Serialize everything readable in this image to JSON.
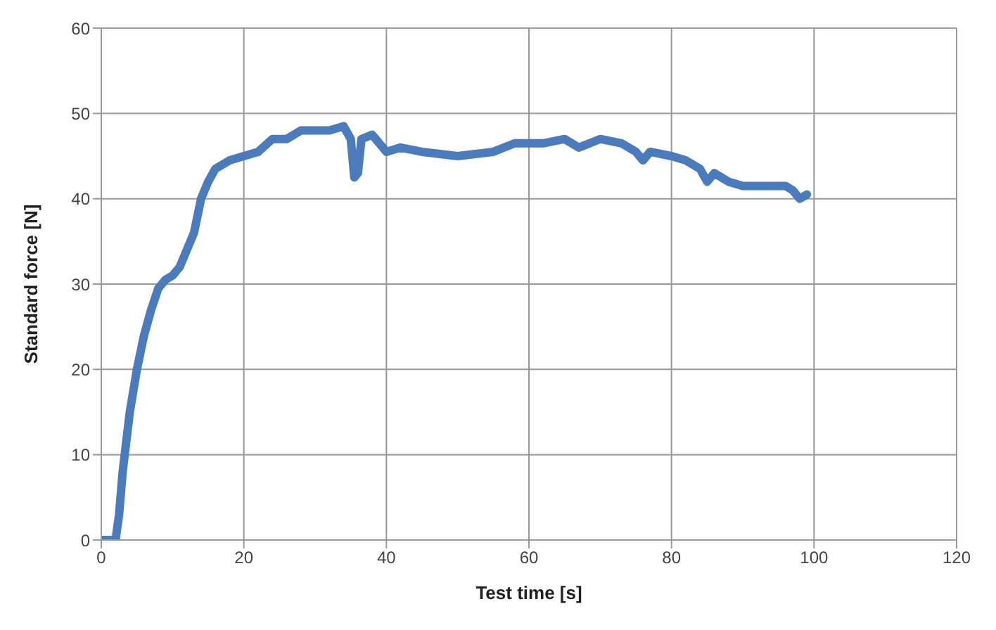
{
  "chart_data": {
    "type": "line",
    "xlabel": "Test time [s]",
    "ylabel": "Standard force [N]",
    "xlim": [
      0,
      120
    ],
    "xticks": [
      0,
      20,
      40,
      60,
      80,
      100,
      120
    ],
    "ylim": [
      0,
      60
    ],
    "yticks": [
      0,
      10,
      20,
      30,
      40,
      50,
      60
    ],
    "grid": true,
    "marker": "none",
    "line_style": "solid",
    "series": [
      {
        "color": "#4a7bbd",
        "x": [
          0,
          2,
          2.5,
          3,
          4,
          5,
          6,
          7,
          8,
          9,
          10,
          11,
          12,
          13,
          14,
          15,
          16,
          18,
          20,
          22,
          24,
          26,
          28,
          30,
          32,
          34,
          35,
          35.5,
          36,
          36.5,
          38,
          40,
          42,
          45,
          50,
          55,
          58,
          62,
          65,
          67,
          70,
          73,
          75,
          76,
          77,
          80,
          82,
          84,
          85,
          86,
          88,
          90,
          94,
          96,
          97,
          98,
          99
        ],
        "values": [
          0,
          0,
          3,
          8,
          15,
          20,
          24,
          27,
          29.5,
          30.5,
          31,
          32,
          34,
          36,
          40,
          42,
          43.5,
          44.5,
          45,
          45.5,
          47,
          47,
          48,
          48,
          48,
          48.5,
          47,
          42.5,
          43,
          47,
          47.5,
          45.5,
          46,
          45.5,
          45,
          45.5,
          46.5,
          46.5,
          47,
          46,
          47,
          46.5,
          45.5,
          44.5,
          45.5,
          45,
          44.5,
          43.5,
          42,
          43,
          42,
          41.5,
          41.5,
          41.5,
          41,
          40,
          40.5
        ]
      }
    ]
  }
}
